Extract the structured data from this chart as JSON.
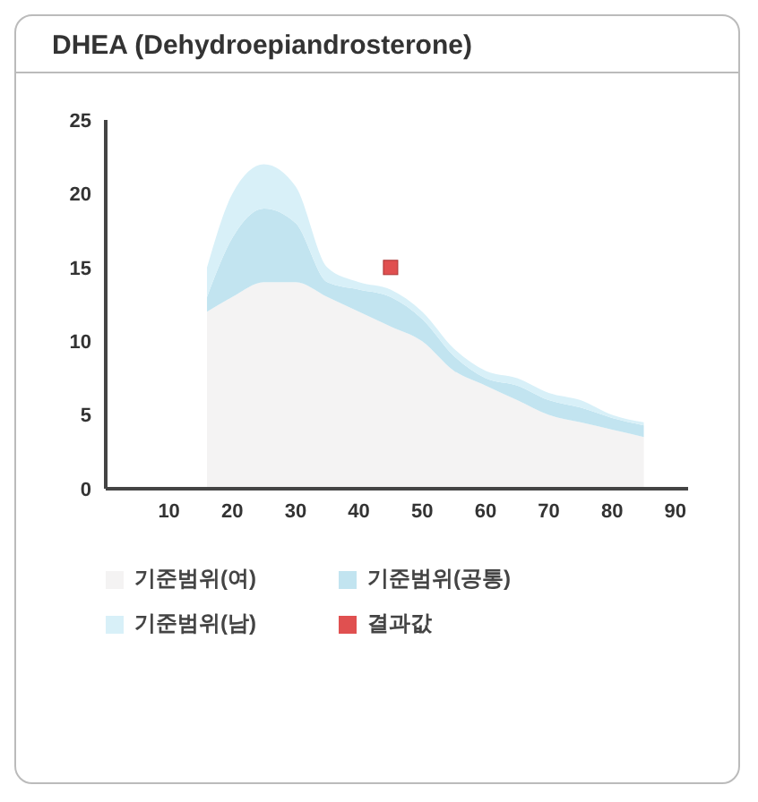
{
  "chart_data": {
    "type": "area",
    "title": "DHEA (Dehydroepiandrosterone)",
    "stacked": true,
    "x": [
      16,
      20,
      25,
      30,
      35,
      40,
      45,
      50,
      55,
      60,
      65,
      70,
      75,
      80,
      85
    ],
    "xlim": [
      0,
      92
    ],
    "xticks": [
      10,
      20,
      30,
      40,
      50,
      60,
      70,
      80,
      90
    ],
    "ylim": [
      0,
      25
    ],
    "yticks": [
      0,
      5,
      10,
      15,
      20,
      25
    ],
    "series": [
      {
        "name": "기준범위(여)",
        "color": "#f4f3f3",
        "values": [
          12,
          13,
          14,
          14,
          13,
          12,
          11,
          10,
          8,
          7,
          6,
          5,
          4.5,
          4,
          3.5
        ]
      },
      {
        "name": "기준범위(공통)",
        "color": "#c2e4f0",
        "values": [
          1,
          4,
          5,
          4,
          1,
          1.5,
          2,
          1.5,
          1,
          0.5,
          1,
          1,
          1,
          0.8,
          0.8
        ]
      },
      {
        "name": "기준범위(남)",
        "color": "#d8f0f8",
        "values": [
          2,
          3,
          3,
          2.5,
          1,
          0.5,
          0.5,
          0.5,
          0.5,
          0.5,
          0.5,
          0.5,
          0.5,
          0.2,
          0.2
        ]
      },
      {
        "name": "결과값",
        "type": "scatter",
        "marker": "square",
        "color": "#e05050",
        "x": [
          45
        ],
        "values": [
          15
        ]
      }
    ],
    "legend": "bottom"
  }
}
